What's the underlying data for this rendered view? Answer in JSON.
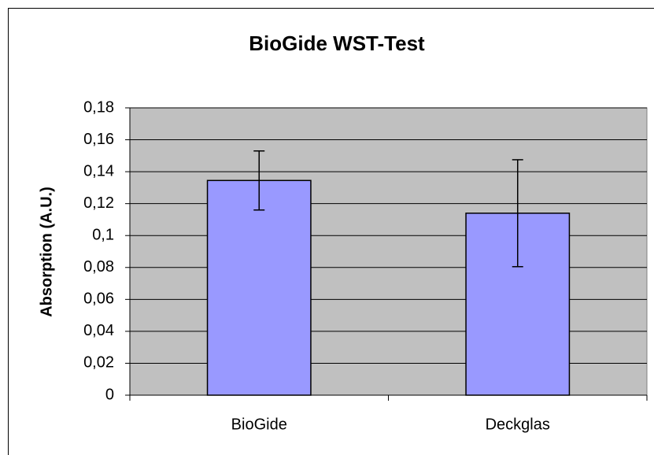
{
  "chart_data": {
    "type": "bar",
    "title": "BioGide WST-Test",
    "y_label": "Absorption (A.U.)",
    "categories": [
      "BioGide",
      "Deckglas"
    ],
    "values": [
      0.1345,
      0.114
    ],
    "errors": [
      0.0185,
      0.0335
    ],
    "color": "#9999ff",
    "plot_background": "#c0c0c0",
    "ylim": [
      0,
      0.18
    ],
    "yticks": [
      0,
      {
        "value": 0.02,
        "label": "0,02"
      },
      {
        "value": 0.04,
        "label": "0,04"
      },
      {
        "value": 0.06,
        "label": "0,06"
      },
      {
        "value": 0.08,
        "label": "0,08"
      },
      {
        "value": 0.1,
        "label": "0,1"
      },
      {
        "value": 0.12,
        "label": "0,12"
      },
      {
        "value": 0.14,
        "label": "0,14"
      },
      {
        "value": 0.16,
        "label": "0,16"
      },
      {
        "value": 0.18,
        "label": "0,18"
      }
    ],
    "grid": true
  }
}
